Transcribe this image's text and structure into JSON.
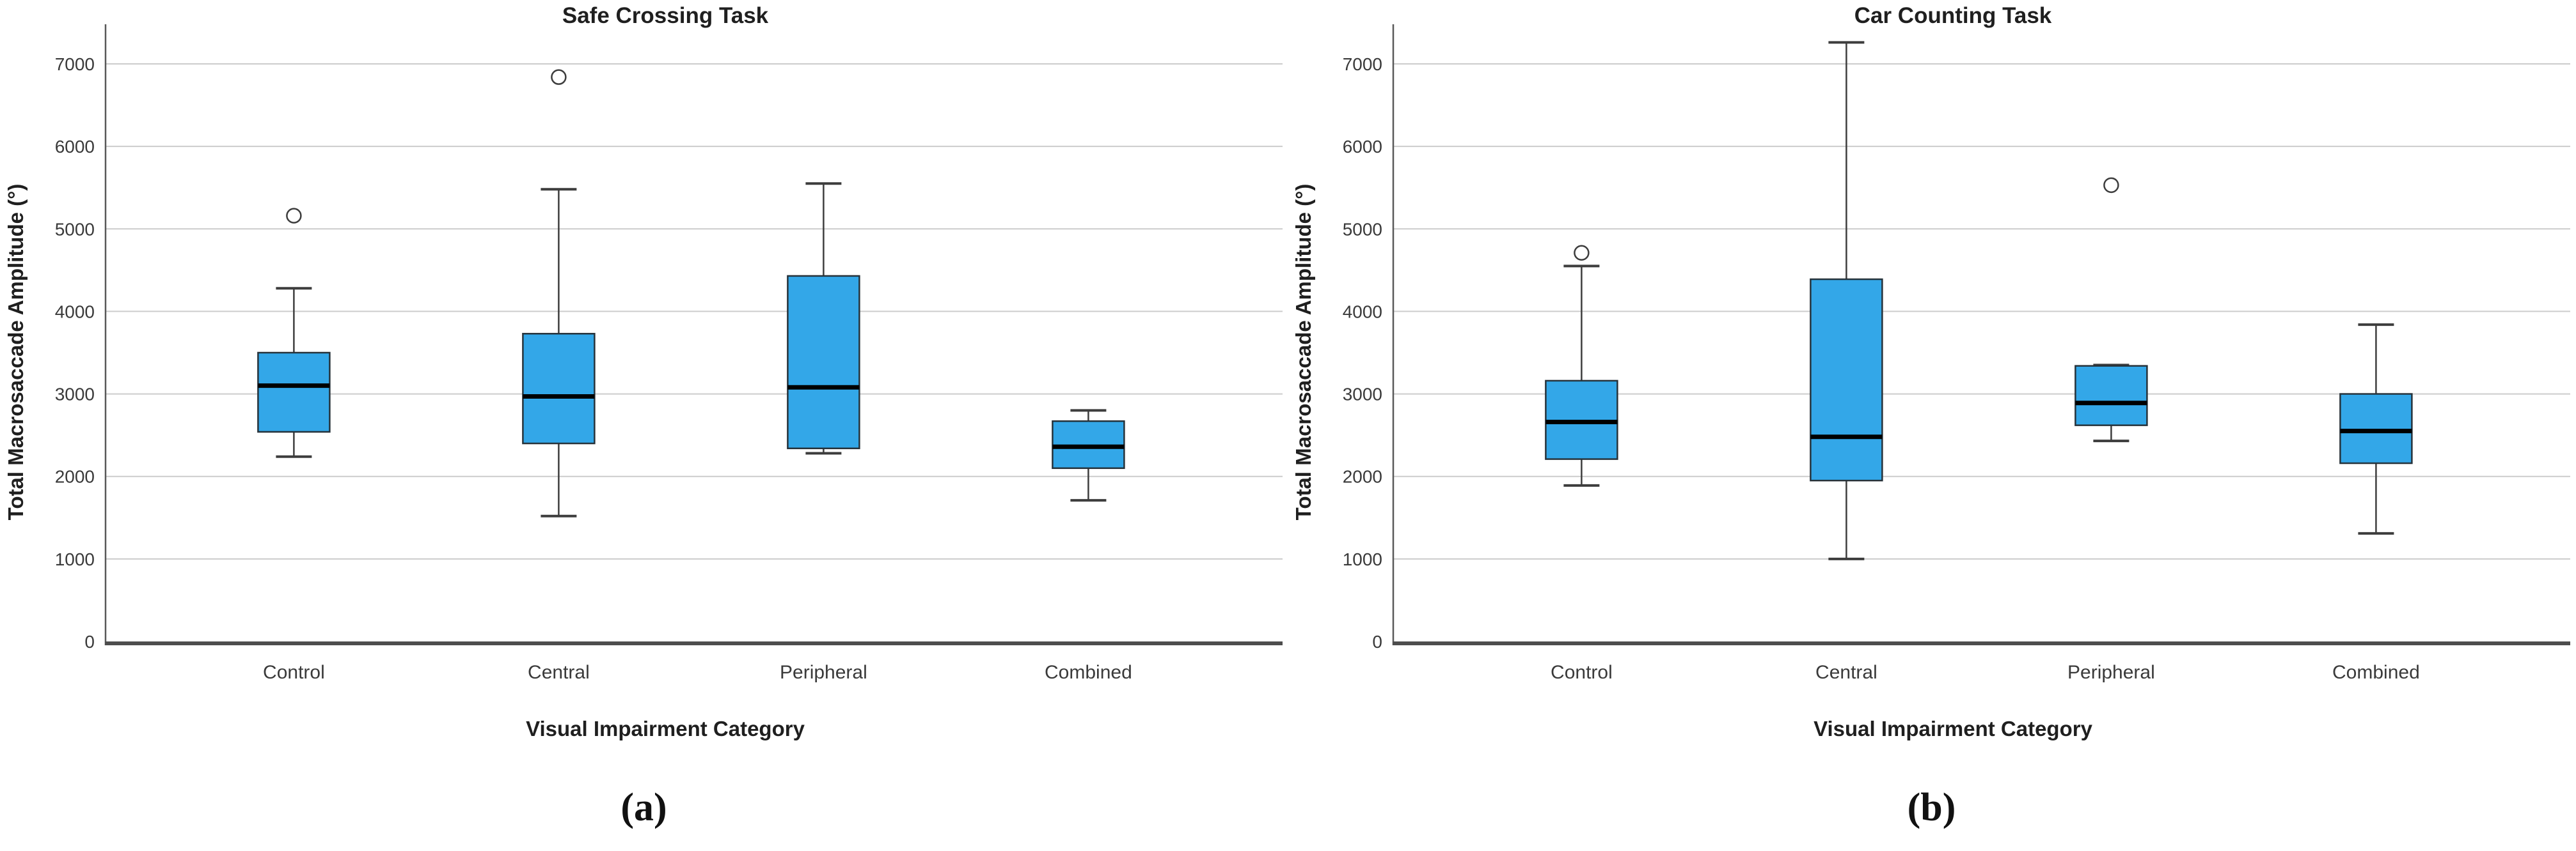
{
  "page": {
    "background": "#ffffff"
  },
  "colors": {
    "box_fill": "#33a7e8",
    "box_border": "#26323a",
    "median_line": "#000000",
    "whisker": "#3d3d3d",
    "outlier_stroke": "#3d3d3d",
    "gridline": "#cccccc",
    "y_axis_line": "#595959",
    "x_axis_line": "#4d4d4d",
    "tick_text": "#3a3a3a",
    "label_text": "#1f1f1f"
  },
  "chart_data": [
    {
      "type": "boxplot",
      "title": "Safe Crossing Task",
      "caption": "(a)",
      "xlabel": "Visual Impairment Category",
      "ylabel": "Total Macrosaccade Amplitude (°)",
      "categories": [
        "Control",
        "Central",
        "Peripheral",
        "Combined"
      ],
      "ylim": [
        0,
        7480
      ],
      "yticks": [
        0,
        1000,
        2000,
        3000,
        4000,
        5000,
        6000,
        7000
      ],
      "grid": "horizontal-only",
      "legend": "none",
      "series": [
        {
          "category": "Control",
          "whisker_low": 2240,
          "q1": 2540,
          "median": 3100,
          "q3": 3500,
          "whisker_high": 4280,
          "outliers": [
            5160
          ]
        },
        {
          "category": "Central",
          "whisker_low": 1520,
          "q1": 2400,
          "median": 2970,
          "q3": 3730,
          "whisker_high": 5480,
          "outliers": [
            6840
          ]
        },
        {
          "category": "Peripheral",
          "whisker_low": 2280,
          "q1": 2340,
          "median": 3080,
          "q3": 4430,
          "whisker_high": 5550,
          "outliers": []
        },
        {
          "category": "Combined",
          "whisker_low": 1710,
          "q1": 2100,
          "median": 2360,
          "q3": 2670,
          "whisker_high": 2800,
          "outliers": []
        }
      ]
    },
    {
      "type": "boxplot",
      "title": "Car Counting Task",
      "caption": "(b)",
      "xlabel": "Visual Impairment Category",
      "ylabel": "Total Macrosaccade Amplitude (°)",
      "categories": [
        "Control",
        "Central",
        "Peripheral",
        "Combined"
      ],
      "ylim": [
        0,
        7480
      ],
      "yticks": [
        0,
        1000,
        2000,
        3000,
        4000,
        5000,
        6000,
        7000
      ],
      "grid": "horizontal-only",
      "legend": "none",
      "series": [
        {
          "category": "Control",
          "whisker_low": 1890,
          "q1": 2210,
          "median": 2660,
          "q3": 3160,
          "whisker_high": 4550,
          "outliers": [
            4710
          ]
        },
        {
          "category": "Central",
          "whisker_low": 1000,
          "q1": 1950,
          "median": 2480,
          "q3": 4390,
          "whisker_high": 7260,
          "outliers": []
        },
        {
          "category": "Peripheral",
          "whisker_low": 2430,
          "q1": 2620,
          "median": 2890,
          "q3": 3340,
          "whisker_high": 3350,
          "outliers": [
            5530
          ]
        },
        {
          "category": "Combined",
          "whisker_low": 1310,
          "q1": 2160,
          "median": 2550,
          "q3": 3000,
          "whisker_high": 3840,
          "outliers": []
        }
      ]
    }
  ]
}
